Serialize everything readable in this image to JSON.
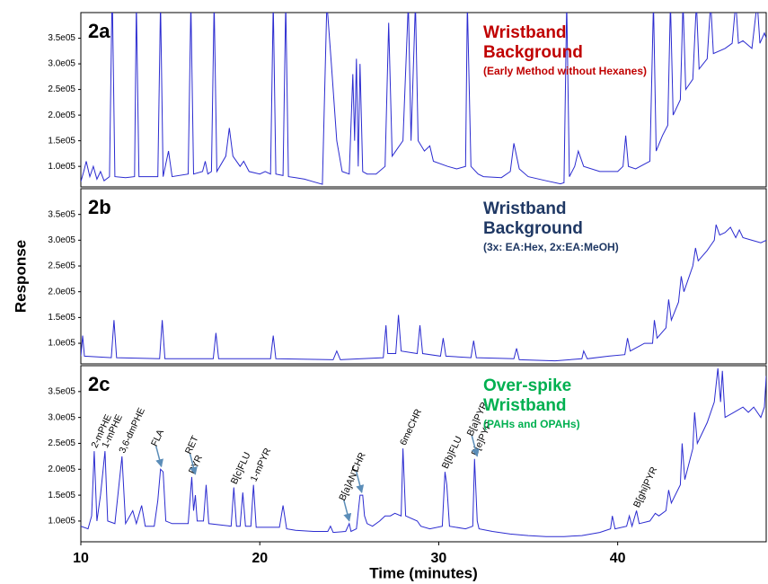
{
  "chart_data": [
    {
      "type": "line",
      "label": "2a",
      "title": "Wristband Background",
      "subtitle": "(Early Method without Hexanes)",
      "title_color": "#c00000",
      "color": "#2b2bd0",
      "xlim": [
        10,
        48.3
      ],
      "ylim": [
        60000,
        400000
      ],
      "yticks": [
        {
          "value": 100000,
          "label": "1.0e05"
        },
        {
          "value": 150000,
          "label": "1.5e05"
        },
        {
          "value": 200000,
          "label": "2.0e05"
        },
        {
          "value": 250000,
          "label": "2.5e05"
        },
        {
          "value": 300000,
          "label": "3.0e05"
        },
        {
          "value": 350000,
          "label": "3.5e05"
        }
      ],
      "x": [
        10.0,
        10.2,
        10.3,
        10.5,
        10.7,
        10.9,
        11.1,
        11.3,
        11.6,
        11.75,
        11.9,
        12.5,
        13.0,
        13.1,
        13.25,
        14.3,
        14.45,
        14.6,
        14.9,
        15.1,
        16.0,
        16.15,
        16.3,
        16.8,
        16.95,
        17.1,
        17.3,
        17.45,
        17.6,
        18.1,
        18.3,
        18.5,
        18.9,
        19.1,
        19.4,
        20.0,
        20.3,
        20.6,
        20.75,
        20.9,
        21.3,
        21.45,
        21.6,
        22.0,
        22.5,
        23.0,
        23.5,
        23.75,
        24.0,
        24.3,
        24.6,
        25.0,
        25.2,
        25.3,
        25.4,
        25.5,
        25.6,
        25.75,
        26.0,
        26.5,
        27.0,
        27.2,
        27.4,
        27.7,
        28.0,
        28.3,
        28.45,
        28.7,
        28.85,
        29.2,
        29.5,
        29.7,
        30.5,
        31.0,
        31.5,
        31.6,
        31.8,
        32.2,
        32.5,
        33.5,
        34.0,
        34.2,
        34.5,
        35.0,
        36.0,
        36.8,
        37.0,
        37.15,
        37.3,
        37.6,
        37.8,
        38.1,
        39.0,
        40.0,
        40.3,
        40.45,
        40.6,
        41.0,
        41.8,
        42.0,
        42.15,
        42.5,
        42.8,
        42.95,
        43.1,
        43.5,
        43.65,
        43.8,
        44.2,
        44.4,
        44.55,
        45.0,
        45.2,
        45.35,
        46.0,
        46.4,
        46.6,
        46.75,
        47.0,
        47.5,
        47.8,
        47.95,
        48.2,
        48.3
      ],
      "values": [
        70000,
        95000,
        110000,
        80000,
        100000,
        75000,
        90000,
        72000,
        80000,
        450000,
        80000,
        78000,
        80000,
        420000,
        80000,
        80000,
        420000,
        80000,
        130000,
        80000,
        85000,
        420000,
        85000,
        90000,
        110000,
        85000,
        90000,
        420000,
        90000,
        120000,
        175000,
        120000,
        100000,
        110000,
        90000,
        85000,
        90000,
        85000,
        420000,
        85000,
        82000,
        420000,
        80000,
        78000,
        75000,
        70000,
        65000,
        420000,
        300000,
        150000,
        90000,
        85000,
        280000,
        150000,
        310000,
        100000,
        300000,
        90000,
        85000,
        85000,
        100000,
        380000,
        120000,
        135000,
        150000,
        420000,
        150000,
        420000,
        150000,
        130000,
        140000,
        110000,
        100000,
        95000,
        100000,
        420000,
        100000,
        85000,
        80000,
        78000,
        90000,
        145000,
        95000,
        80000,
        72000,
        66000,
        68000,
        420000,
        80000,
        100000,
        130000,
        100000,
        90000,
        90000,
        100000,
        160000,
        100000,
        95000,
        110000,
        420000,
        130000,
        160000,
        180000,
        420000,
        200000,
        230000,
        420000,
        250000,
        270000,
        420000,
        290000,
        310000,
        420000,
        320000,
        330000,
        340000,
        420000,
        340000,
        345000,
        330000,
        420000,
        340000,
        360000,
        350000
      ]
    },
    {
      "type": "line",
      "label": "2b",
      "title": "Wristband Background",
      "subtitle": "(3x: EA:Hex, 2x:EA:MeOH)",
      "title_color": "#1f3864",
      "color": "#2b2bd0",
      "ylabel": "Response",
      "xlim": [
        10,
        48.3
      ],
      "ylim": [
        60000,
        400000
      ],
      "yticks": [
        {
          "value": 100000,
          "label": "1.0e05"
        },
        {
          "value": 150000,
          "label": "1.5e05"
        },
        {
          "value": 200000,
          "label": "2.0e05"
        },
        {
          "value": 250000,
          "label": "2.5e05"
        },
        {
          "value": 300000,
          "label": "3.0e05"
        },
        {
          "value": 350000,
          "label": "3.5e05"
        }
      ],
      "x": [
        10.0,
        10.1,
        10.2,
        11.7,
        11.85,
        12.0,
        14.4,
        14.55,
        14.7,
        17.4,
        17.55,
        17.7,
        20.6,
        20.75,
        20.9,
        24.1,
        24.3,
        24.5,
        26.9,
        27.05,
        27.15,
        27.6,
        27.75,
        27.9,
        28.8,
        28.95,
        29.1,
        30.1,
        30.25,
        30.4,
        31.8,
        31.95,
        32.1,
        34.2,
        34.35,
        34.5,
        36.5,
        38.0,
        38.1,
        38.3,
        39.5,
        40.4,
        40.55,
        40.7,
        41.5,
        41.95,
        42.05,
        42.2,
        42.7,
        42.85,
        43.0,
        43.4,
        43.55,
        43.7,
        44.2,
        44.35,
        44.5,
        45.0,
        45.2,
        45.4,
        45.5,
        45.7,
        46.0,
        46.3,
        46.6,
        46.8,
        47.0,
        47.5,
        48.0,
        48.3
      ],
      "values": [
        75000,
        115000,
        75000,
        72000,
        145000,
        72000,
        70000,
        145000,
        70000,
        70000,
        120000,
        70000,
        70000,
        115000,
        70000,
        68000,
        85000,
        68000,
        72000,
        135000,
        80000,
        80000,
        155000,
        85000,
        80000,
        135000,
        80000,
        75000,
        110000,
        75000,
        72000,
        105000,
        72000,
        70000,
        90000,
        68000,
        66000,
        70000,
        85000,
        70000,
        75000,
        78000,
        110000,
        85000,
        100000,
        100000,
        145000,
        110000,
        130000,
        185000,
        145000,
        180000,
        230000,
        200000,
        250000,
        285000,
        260000,
        280000,
        290000,
        300000,
        330000,
        310000,
        315000,
        325000,
        305000,
        320000,
        305000,
        300000,
        295000,
        300000
      ]
    },
    {
      "type": "line",
      "label": "2c",
      "title": "Over-spike Wristband",
      "subtitle": "(PAHs and OPAHs)",
      "title_color": "#00b050",
      "color": "#2b2bd0",
      "xlabel": "Time (minutes)",
      "xlim": [
        10,
        48.3
      ],
      "xticks": [
        10,
        20,
        30,
        40
      ],
      "ylim": [
        60000,
        400000
      ],
      "yticks": [
        {
          "value": 100000,
          "label": "1.0e05"
        },
        {
          "value": 150000,
          "label": "1.5e05"
        },
        {
          "value": 200000,
          "label": "2.0e05"
        },
        {
          "value": 250000,
          "label": "2.5e05"
        },
        {
          "value": 300000,
          "label": "3.0e05"
        },
        {
          "value": 350000,
          "label": "3.5e05"
        }
      ],
      "x": [
        10.0,
        10.4,
        10.6,
        10.75,
        10.9,
        11.1,
        11.35,
        11.5,
        11.9,
        12.3,
        12.5,
        12.9,
        13.1,
        13.4,
        13.6,
        14.1,
        14.3,
        14.45,
        14.6,
        14.75,
        15.1,
        16.0,
        16.2,
        16.3,
        16.4,
        16.5,
        16.85,
        17.0,
        17.15,
        18.4,
        18.55,
        18.7,
        18.9,
        19.05,
        19.2,
        19.5,
        19.65,
        19.8,
        21.1,
        21.3,
        21.5,
        22.0,
        23.0,
        23.8,
        23.95,
        24.1,
        24.8,
        25.0,
        25.1,
        25.4,
        25.6,
        25.75,
        25.85,
        26.0,
        26.3,
        26.7,
        27.0,
        27.3,
        27.55,
        27.9,
        28.0,
        28.15,
        28.8,
        29.0,
        29.5,
        30.2,
        30.35,
        30.45,
        30.6,
        31.5,
        31.9,
        32.0,
        32.15,
        32.25,
        33.0,
        34.0,
        35.0,
        36.0,
        37.0,
        38.0,
        39.0,
        39.6,
        39.7,
        39.85,
        40.5,
        40.65,
        40.8,
        41.05,
        41.2,
        41.8,
        42.1,
        42.3,
        42.7,
        42.85,
        43.0,
        43.5,
        43.6,
        43.75,
        44.2,
        44.3,
        44.45,
        45.0,
        45.4,
        45.6,
        45.75,
        45.85,
        46.0,
        46.5,
        47.0,
        47.3,
        47.6,
        48.0,
        48.2,
        48.3
      ],
      "values": [
        90000,
        85000,
        110000,
        235000,
        100000,
        150000,
        235000,
        100000,
        95000,
        225000,
        95000,
        120000,
        95000,
        130000,
        90000,
        90000,
        140000,
        200000,
        195000,
        100000,
        95000,
        95000,
        185000,
        120000,
        150000,
        100000,
        100000,
        170000,
        95000,
        90000,
        165000,
        90000,
        90000,
        155000,
        90000,
        90000,
        170000,
        88000,
        88000,
        130000,
        85000,
        82000,
        80000,
        80000,
        90000,
        78000,
        80000,
        95000,
        80000,
        85000,
        150000,
        150000,
        110000,
        95000,
        90000,
        100000,
        110000,
        110000,
        115000,
        110000,
        240000,
        110000,
        100000,
        90000,
        85000,
        90000,
        195000,
        170000,
        90000,
        85000,
        90000,
        220000,
        100000,
        85000,
        80000,
        75000,
        72000,
        70000,
        70000,
        72000,
        78000,
        85000,
        110000,
        85000,
        90000,
        110000,
        90000,
        120000,
        95000,
        100000,
        115000,
        110000,
        120000,
        160000,
        135000,
        170000,
        250000,
        180000,
        240000,
        310000,
        250000,
        290000,
        330000,
        395000,
        330000,
        390000,
        300000,
        310000,
        320000,
        310000,
        320000,
        300000,
        320000,
        380000
      ],
      "annotations": [
        {
          "text": "2-mPHE",
          "x": 10.75
        },
        {
          "text": "1-mPHE",
          "x": 11.35
        },
        {
          "text": "3,6-dmPHE",
          "x": 12.3
        },
        {
          "text": "FLA",
          "x": 14.5,
          "arrow": true
        },
        {
          "text": "PYR",
          "x": 16.2
        },
        {
          "text": "RET",
          "x": 16.4,
          "arrow": true
        },
        {
          "text": "B[c]FLU",
          "x": 18.55
        },
        {
          "text": "1-mPYR",
          "x": 19.65
        },
        {
          "text": "B[a]ANT",
          "x": 25.0,
          "arrow": true
        },
        {
          "text": "CHR",
          "x": 25.7,
          "arrow": true
        },
        {
          "text": "6meCHR",
          "x": 28.0
        },
        {
          "text": "B[b]FLU",
          "x": 30.35
        },
        {
          "text": "B[e]PYR",
          "x": 32.0
        },
        {
          "text": "B[a]PYR",
          "x": 32.15,
          "arrow": true
        },
        {
          "text": "B[ghi]PYR",
          "x": 41.05
        }
      ]
    }
  ]
}
